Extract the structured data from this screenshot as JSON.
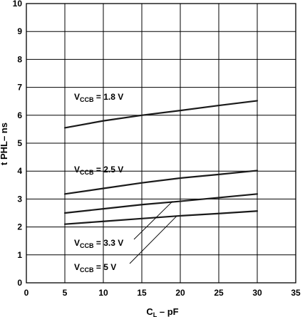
{
  "chart_data": {
    "type": "line",
    "xlabel": {
      "main": "C",
      "sub": "L",
      "rest": " – pF"
    },
    "ylabel": "t PHL– ns",
    "xlim": [
      0,
      35
    ],
    "ylim": [
      0,
      10
    ],
    "x_ticks": [
      "0",
      "5",
      "10",
      "15",
      "20",
      "25",
      "30",
      "35"
    ],
    "y_ticks": [
      "0",
      "1",
      "2",
      "3",
      "4",
      "5",
      "6",
      "7",
      "8",
      "9",
      "10"
    ],
    "grid": true,
    "series": [
      {
        "name": "VCCB = 1.8 V",
        "label": {
          "main": "V",
          "sub": "CCB",
          "rest": " = 1.8 V"
        },
        "x": [
          5,
          10,
          15,
          20,
          25,
          30
        ],
        "y": [
          5.55,
          5.8,
          6.0,
          6.17,
          6.35,
          6.52
        ]
      },
      {
        "name": "VCCB = 2.5 V",
        "label": {
          "main": "V",
          "sub": "CCB",
          "rest": " = 2.5 V"
        },
        "x": [
          5,
          10,
          15,
          20,
          25,
          30
        ],
        "y": [
          3.18,
          3.38,
          3.58,
          3.75,
          3.88,
          4.02
        ]
      },
      {
        "name": "VCCB = 3.3 V",
        "label": {
          "main": "V",
          "sub": "CCB",
          "rest": " = 3.3 V"
        },
        "x": [
          5,
          10,
          15,
          20,
          25,
          30
        ],
        "y": [
          2.5,
          2.65,
          2.8,
          2.92,
          3.05,
          3.18
        ]
      },
      {
        "name": "VCCB = 5 V",
        "label": {
          "main": "V",
          "sub": "CCB",
          "rest": " = 5 V"
        },
        "x": [
          5,
          10,
          15,
          20,
          25,
          30
        ],
        "y": [
          2.1,
          2.2,
          2.3,
          2.4,
          2.48,
          2.57
        ]
      }
    ]
  }
}
